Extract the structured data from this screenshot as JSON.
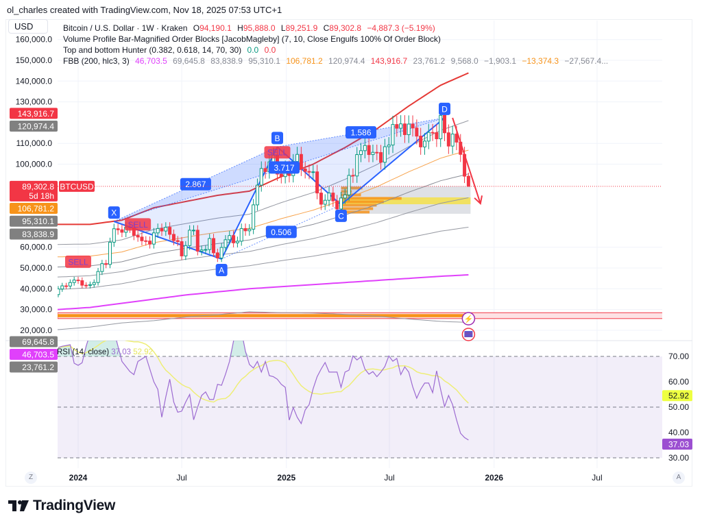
{
  "credit": "ol_charles created with TradingView.com, Nov 18, 2025 07:53 UTC+1",
  "currency": "USD",
  "legend": {
    "symbol": "Bitcoin / U.S. Dollar · 1W · Kraken",
    "o_label": "O",
    "o": "94,190.1",
    "h_label": "H",
    "h": "95,888.0",
    "l_label": "L",
    "l": "89,251.9",
    "c_label": "C",
    "c": "89,302.8",
    "change": "−4,887.3 (−5.19%)",
    "indicator1": "Volume Profile Bar-Magnified Order Blocks [JacobMagleby] (7, 10, Close Engulfs 100% Of Order Block)",
    "indicator2": "Top and bottom Hunter (0.382, 0.618, 14, 70, 30)",
    "indicator2_v1": "0.0",
    "indicator2_v2": "0.0",
    "indicator3": "FBB (200, hlc3, 3)",
    "fbb_values": [
      "46,703.5",
      "69,645.8",
      "83,838.9",
      "95,310.1",
      "106,781.2",
      "120,974.4",
      "143,916.7",
      "23,761.2",
      "9,568.0",
      "−1,903.1",
      "−13,374.3",
      "−27,567.4..."
    ]
  },
  "rsi_legend": {
    "name": "RSI (14, close)",
    "rsi": "37.03",
    "ma": "52.92"
  },
  "logo_text": "TradingView",
  "buttons": {
    "z": "Z",
    "a": "A"
  },
  "colors": {
    "up": "#089981",
    "down": "#f23645",
    "basis": "#e040fb",
    "upper": "#e53935",
    "orange": "#f7a24a",
    "band": "#9598a1",
    "pattern": "#2962ff",
    "rsi": "#9c6ad1",
    "rsi_ma": "#eeee77"
  },
  "chart_data": {
    "type": "candlestick",
    "symbol": "BTCUSD",
    "interval": "1W",
    "y_axis": {
      "scale": "linear",
      "ticks": [
        160000,
        150000,
        140000,
        130000,
        110000,
        100000,
        60000,
        50000,
        40000,
        30000,
        20000
      ],
      "tick_labels": [
        "160,000.0",
        "150,000.0",
        "140,000.0",
        "130,000.0",
        "110,000.0",
        "100,000.0",
        "60,000.0",
        "50,000.0",
        "40,000.0",
        "30,000.0",
        "20,000.0"
      ]
    },
    "x_axis": {
      "ticks": [
        {
          "date": "2024-01-01",
          "label": "2024",
          "bold": true
        },
        {
          "date": "2024-07-01",
          "label": "Jul",
          "bold": false
        },
        {
          "date": "2025-01-01",
          "label": "2025",
          "bold": true
        },
        {
          "date": "2025-07-01",
          "label": "Jul",
          "bold": false
        },
        {
          "date": "2026-01-01",
          "label": "2026",
          "bold": true
        },
        {
          "date": "2026-07-01",
          "label": "Jul",
          "bold": false
        }
      ]
    },
    "start_week": "2023-11-27",
    "first_open": 37200,
    "close": [
      39900,
      41400,
      41300,
      43000,
      44200,
      43900,
      41700,
      41600,
      42000,
      43000,
      48300,
      52100,
      51700,
      62400,
      68900,
      68400,
      67200,
      69600,
      69300,
      65700,
      64900,
      63100,
      63000,
      61500,
      66900,
      69000,
      67800,
      69600,
      66200,
      63200,
      62700,
      55800,
      60800,
      68200,
      68200,
      58100,
      58700,
      58900,
      64200,
      57300,
      54800,
      59900,
      63600,
      65600,
      62100,
      62900,
      69000,
      67900,
      68700,
      80400,
      89900,
      97900,
      96400,
      101100,
      104300,
      95200,
      94000,
      98300,
      94500,
      101300,
      104700,
      97700,
      96500,
      96100,
      96300,
      86100,
      80700,
      82600,
      86100,
      82300,
      78400,
      83700,
      85200,
      94600,
      94300,
      104600,
      106500,
      109000,
      104600,
      105700,
      105600,
      100900,
      108400,
      109200,
      119100,
      117300,
      119400,
      114200,
      119300,
      117400,
      113500,
      108300,
      111100,
      115300,
      115200,
      112200,
      123500,
      115100,
      108700,
      114500,
      110600,
      104700,
      94200,
      89302.8
    ],
    "last_bar": {
      "open": 94190.1,
      "high": 95888.0,
      "low": 89251.9,
      "close": 89302.8,
      "change": -4887.3,
      "change_pct": -5.19,
      "countdown": "5d 18h"
    },
    "fbb": {
      "length": 200,
      "source": "hlc3",
      "mult": 3,
      "ratios": [
        0.236,
        0.382,
        0.5,
        0.618,
        0.764,
        1,
        -0.236
      ],
      "sample_dates": [
        "2023-11-27",
        "2024-01-22",
        "2024-03-18",
        "2024-05-13",
        "2024-07-08",
        "2024-09-02",
        "2024-10-28",
        "2024-12-23",
        "2025-02-17",
        "2025-04-14",
        "2025-06-09",
        "2025-08-04",
        "2025-09-29",
        "2025-11-17"
      ],
      "basis": [
        30000,
        31000,
        33000,
        35000,
        37000,
        38500,
        40000,
        41000,
        42000,
        43000,
        44000,
        45000,
        46000,
        46703.5
      ],
      "deviation": [
        41000,
        40000,
        40000,
        44000,
        45000,
        46500,
        47000,
        53000,
        58000,
        65000,
        73000,
        83000,
        92000,
        97213.2
      ],
      "current": {
        "basis": 46703.5,
        "0.236": 69645.8,
        "0.382": 83838.9,
        "0.5": 95310.1,
        "0.618": 106781.2,
        "0.764": 120974.4,
        "1": 143916.7,
        "-0.236": 23761.2
      }
    },
    "price_tags": [
      {
        "value": 143916.7,
        "label": "143,916.7",
        "bg": "#f23645",
        "fg": "#ffffff"
      },
      {
        "value": 120974.4,
        "label": "120,974.4",
        "bg": "#808080",
        "fg": "#ffffff"
      },
      {
        "value": 106781.2,
        "label": "106,781.2",
        "bg": "#f7931a",
        "fg": "#ffffff"
      },
      {
        "value": 95310.1,
        "label": "95,310.1",
        "bg": "#808080",
        "fg": "#ffffff"
      },
      {
        "value": 83838.9,
        "label": "83,838.9",
        "bg": "#808080",
        "fg": "#ffffff"
      },
      {
        "value": 69645.8,
        "label": "69,645.8",
        "bg": "#808080",
        "fg": "#ffffff"
      },
      {
        "value": 46703.5,
        "label": "46,703.5",
        "bg": "#e040fb",
        "fg": "#ffffff"
      },
      {
        "value": 23761.2,
        "label": "23,761.2",
        "bg": "#808080",
        "fg": "#ffffff"
      }
    ],
    "last_price_tag": {
      "value": 89302.8,
      "label": "89,302.8",
      "countdown": "5d 18h",
      "symbol_label": "BTCUSD",
      "bg": "#f23645"
    },
    "harmonic": {
      "points": [
        {
          "name": "X",
          "date": "2024-03-04",
          "price": 72400
        },
        {
          "name": "A",
          "date": "2024-09-09",
          "price": 54300
        },
        {
          "name": "B",
          "date": "2024-12-16",
          "price": 108300
        },
        {
          "name": "C",
          "date": "2025-04-07",
          "price": 80400
        },
        {
          "name": "D",
          "date": "2025-10-06",
          "price": 122300
        }
      ],
      "ratios": [
        {
          "label": "2.867",
          "from": "X",
          "to": "B"
        },
        {
          "label": "0.506",
          "from": "A",
          "to": "C"
        },
        {
          "label": "1.586",
          "from": "B",
          "to": "D"
        },
        {
          "label": "3.717",
          "from": "B",
          "to": "C"
        }
      ]
    },
    "sell_signals": [
      {
        "label": "SELL",
        "date": "2024-01-01",
        "price": 53000
      },
      {
        "label": "SELL",
        "date": "2024-04-15",
        "price": 71000
      },
      {
        "label": "SELL",
        "date": "2024-12-16",
        "price": 112300
      }
    ],
    "arrow": {
      "from": {
        "date": "2025-10-20",
        "price": 122300
      },
      "to": {
        "date": "2025-12-08",
        "price": 81000
      },
      "color": "#f23645"
    },
    "order_blocks": [
      {
        "start": "2025-04-07",
        "end": "2025-11-17",
        "top": 89302.8,
        "bottom": 76100,
        "color": "#d1d4dc",
        "poc_top": 84000,
        "poc_bottom": 80700,
        "profile": [
          0.3,
          0.15,
          0.28,
          0.85,
          0.6,
          0.5,
          0.45,
          0.4
        ]
      },
      {
        "start": "2023-11-27",
        "end": "2025-11-17",
        "top": 27800,
        "bottom": 26300,
        "color": "#f7931a",
        "extend_to": "2026-11-30"
      }
    ],
    "rsi": {
      "length": 14,
      "ma_length": 14,
      "levels": [
        70,
        50,
        30
      ],
      "ticks": [
        70,
        60,
        50,
        40,
        30
      ],
      "tick_labels": [
        "70.00",
        "60.00",
        "50.00",
        "40.00",
        "30.00"
      ],
      "values": [
        73.5,
        74,
        74.3,
        74.6,
        67.3,
        66.5,
        67.5,
        74,
        79,
        82,
        85,
        88,
        86,
        84,
        80,
        74,
        68,
        66,
        64,
        62.8,
        68,
        69,
        70,
        65,
        60,
        57,
        46,
        54,
        61,
        52,
        48,
        48.4,
        52,
        55,
        45,
        50,
        54.6,
        56,
        53,
        53,
        59,
        58.6,
        63,
        68,
        76,
        82,
        80,
        72,
        66.8,
        65.4,
        68,
        63.8,
        68,
        62.4,
        62,
        61,
        59,
        57.8,
        44.9,
        49.8,
        46,
        43.5,
        48.9,
        51,
        57.3,
        62,
        65,
        67.6,
        63.8,
        63.8,
        63.8,
        57.8,
        63.8,
        64.6,
        70.2,
        68.6,
        69.8,
        65,
        63,
        64,
        62,
        63.8,
        66,
        70.2,
        68.1,
        69.2,
        62.8,
        65.9,
        63.8,
        58,
        53.5,
        57,
        59.5,
        59.5,
        55.7,
        64.3,
        57,
        50.2,
        54.6,
        51,
        45,
        39.7,
        38,
        37.03
      ],
      "current": 37.03,
      "current_label": "37.03",
      "ma_current": 52.92,
      "ma_current_label": "52.92"
    }
  }
}
